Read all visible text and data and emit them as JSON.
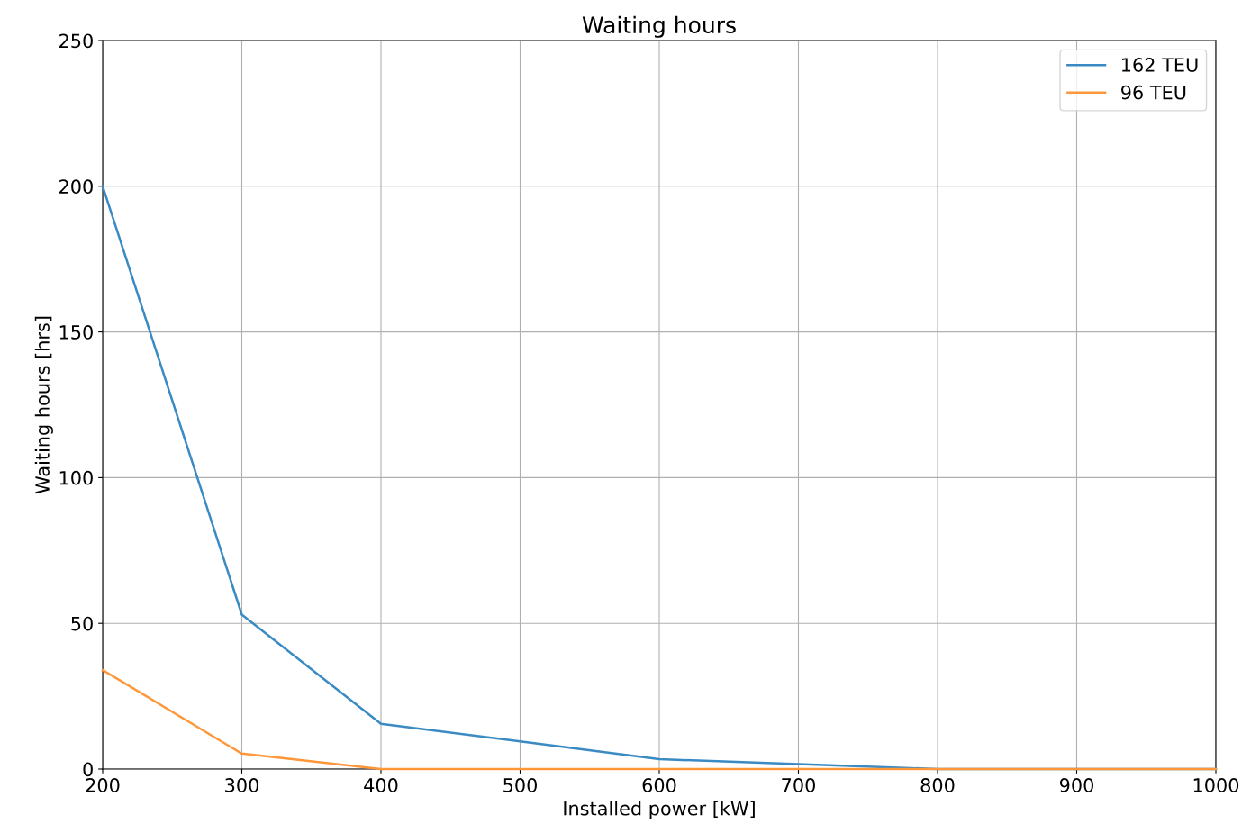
{
  "chart_data": {
    "type": "line",
    "title": "Waiting hours",
    "xlabel": "Installed power [kW]",
    "ylabel": "Waiting hours [hrs]",
    "x": [
      200,
      300,
      400,
      500,
      600,
      700,
      800,
      900,
      1000
    ],
    "series": [
      {
        "name": "162 TEU",
        "color": "#3a8ac4",
        "values": [
          200,
          53,
          15.5,
          9.5,
          3.4,
          1.7,
          0,
          0,
          0
        ]
      },
      {
        "name": "96 TEU",
        "color": "#fd973a",
        "values": [
          34,
          5.3,
          0,
          0,
          0,
          0,
          0,
          0,
          0
        ]
      }
    ],
    "xlim": [
      200,
      1000
    ],
    "xticks": [
      200,
      300,
      400,
      500,
      600,
      700,
      800,
      900,
      1000
    ],
    "ylim": [
      0,
      250
    ],
    "yticks": [
      0,
      50,
      100,
      150,
      200,
      250
    ],
    "grid": true,
    "legend": "top right"
  }
}
